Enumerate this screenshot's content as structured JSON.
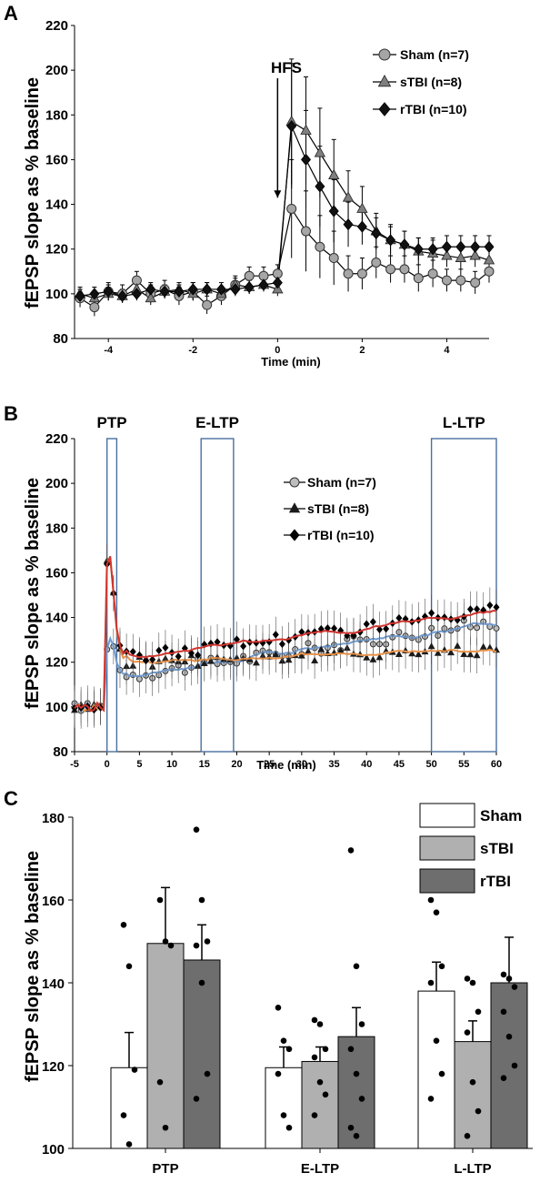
{
  "chart_data": [
    {
      "panel": "A",
      "type": "line",
      "ylabel": "fEPSP slope as % baseline",
      "xlabel": "Time (min)",
      "xlim": [
        -4.8,
        5.0
      ],
      "ylim": [
        80,
        220
      ],
      "xticks": [
        -4,
        -2,
        0,
        2,
        4
      ],
      "yticks": [
        80,
        100,
        120,
        140,
        160,
        180,
        200,
        220
      ],
      "annotation": "HFS",
      "annotation_x": 0,
      "legend_position": "top-right",
      "series": [
        {
          "name": "Sham (n=7)",
          "marker": "circle",
          "x": [
            -4.67,
            -4.33,
            -4.0,
            -3.67,
            -3.33,
            -3.0,
            -2.67,
            -2.33,
            -2.0,
            -1.67,
            -1.33,
            -1.0,
            -0.67,
            -0.33,
            0.0,
            0.33,
            0.67,
            1.0,
            1.33,
            1.67,
            2.0,
            2.33,
            2.67,
            3.0,
            3.33,
            3.67,
            4.0,
            4.33,
            4.67,
            5.0
          ],
          "y": [
            98,
            94,
            101,
            100,
            106,
            100,
            102,
            99,
            101,
            95,
            99,
            104,
            108,
            108,
            109,
            138,
            128,
            121,
            116,
            109,
            109,
            114,
            111,
            111,
            107,
            109,
            106,
            106,
            105,
            110
          ],
          "err": [
            4,
            4,
            4,
            4,
            4,
            4,
            4,
            4,
            4,
            4,
            4,
            4,
            4,
            4,
            4,
            22,
            18,
            14,
            12,
            8,
            7,
            7,
            6,
            6,
            6,
            6,
            5,
            5,
            5,
            5
          ]
        },
        {
          "name": "sTBI (n=8)",
          "marker": "triangle",
          "x": [
            -4.67,
            -4.33,
            -4.0,
            -3.67,
            -3.33,
            -3.0,
            -2.67,
            -2.33,
            -2.0,
            -1.67,
            -1.33,
            -1.0,
            -0.67,
            -0.33,
            0.0,
            0.33,
            0.67,
            1.0,
            1.33,
            1.67,
            2.0,
            2.33,
            2.67,
            3.0,
            3.33,
            3.67,
            4.0,
            4.33,
            4.67,
            5.0
          ],
          "y": [
            100,
            98,
            100,
            99,
            102,
            98,
            101,
            102,
            100,
            102,
            100,
            104,
            103,
            104,
            102,
            177,
            173,
            163,
            153,
            143,
            138,
            128,
            124,
            122,
            119,
            118,
            117,
            116,
            117,
            115
          ],
          "err": [
            3,
            3,
            3,
            3,
            3,
            3,
            3,
            3,
            3,
            3,
            3,
            3,
            3,
            3,
            3,
            28,
            24,
            20,
            16,
            12,
            10,
            8,
            7,
            6,
            6,
            6,
            5,
            5,
            5,
            5
          ]
        },
        {
          "name": "rTBI (n=10)",
          "marker": "diamond",
          "x": [
            -4.67,
            -4.33,
            -4.0,
            -3.67,
            -3.33,
            -3.0,
            -2.67,
            -2.33,
            -2.0,
            -1.67,
            -1.33,
            -1.0,
            -0.67,
            -0.33,
            0.0,
            0.33,
            0.67,
            1.0,
            1.33,
            1.67,
            2.0,
            2.33,
            2.67,
            3.0,
            3.33,
            3.67,
            4.0,
            4.33,
            4.67,
            5.0
          ],
          "y": [
            99,
            100,
            101,
            99,
            100,
            102,
            101,
            101,
            102,
            102,
            102,
            102,
            103,
            104,
            105,
            175,
            160,
            148,
            137,
            131,
            130,
            127,
            124,
            122,
            120,
            120,
            121,
            121,
            121,
            121
          ],
          "err": [
            3,
            3,
            3,
            3,
            3,
            3,
            3,
            3,
            3,
            3,
            3,
            3,
            3,
            3,
            3,
            28,
            22,
            18,
            14,
            10,
            8,
            7,
            6,
            6,
            5,
            5,
            5,
            5,
            5,
            5
          ]
        }
      ]
    },
    {
      "panel": "B",
      "type": "line",
      "ylabel": "fEPSP slope as % baseline",
      "xlabel": "Time (min)",
      "xlim": [
        -5,
        60
      ],
      "ylim": [
        80,
        220
      ],
      "xticks": [
        -5,
        0,
        5,
        10,
        15,
        20,
        25,
        30,
        35,
        40,
        45,
        50,
        55,
        60
      ],
      "yticks": [
        80,
        100,
        120,
        140,
        160,
        180,
        200,
        220
      ],
      "windows": [
        {
          "label": "PTP",
          "x0": 0,
          "x1": 1.5
        },
        {
          "label": "E-LTP",
          "x0": 14.5,
          "x1": 19.5
        },
        {
          "label": "L-LTP",
          "x0": 50,
          "x1": 60
        }
      ],
      "legend_position": "top-right",
      "series": [
        {
          "name": "Sham (n=7)",
          "marker": "circle",
          "baseline": 100,
          "peak": 138,
          "plateau_start": 114,
          "plateau_end": 138,
          "color": "#6f9bd1"
        },
        {
          "name": "sTBI (n=8)",
          "marker": "triangle",
          "baseline": 100,
          "peak": 177,
          "plateau_start": 120,
          "plateau_end": 126,
          "color": "#e8924a"
        },
        {
          "name": "rTBI (n=10)",
          "marker": "diamond",
          "baseline": 100,
          "peak": 175,
          "plateau_start": 122,
          "plateau_end": 143,
          "color": "#d0352f"
        }
      ]
    },
    {
      "panel": "C",
      "type": "bar",
      "ylabel": "fEPSP slope as % baseline",
      "ylim": [
        100,
        180
      ],
      "yticks": [
        100,
        120,
        140,
        160,
        180
      ],
      "categories": [
        "PTP",
        "E-LTP",
        "L-LTP"
      ],
      "legend_position": "top-right",
      "series": [
        {
          "name": "Sham",
          "color": "#ffffff",
          "values": [
            119.5,
            119.5,
            138.0
          ],
          "err": [
            8.5,
            5.0,
            7.0
          ],
          "points": [
            [
              154,
              144,
              119,
              108,
              101
            ],
            [
              134,
              126,
              124,
              118,
              108,
              105
            ],
            [
              160,
              157,
              144,
              140,
              126,
              118,
              112
            ]
          ]
        },
        {
          "name": "sTBI",
          "color": "#b0b0b0",
          "values": [
            149.5,
            121.0,
            125.8
          ],
          "err": [
            13.5,
            3.5,
            5.0
          ],
          "points": [
            [
              160,
              150,
              149,
              116,
              105
            ],
            [
              131,
              130,
              124,
              122,
              116,
              113,
              108
            ],
            [
              141,
              140,
              133,
              128,
              116,
              109,
              103
            ]
          ]
        },
        {
          "name": "rTBI",
          "color": "#6e6e6e",
          "values": [
            145.5,
            127.0,
            140.0
          ],
          "err": [
            8.5,
            7.0,
            11.0
          ],
          "points": [
            [
              177,
              160,
              150,
              149,
              140,
              118,
              112
            ],
            [
              172,
              144,
              130,
              124,
              118,
              112,
              105,
              103
            ],
            [
              142,
              141,
              139,
              133,
              127,
              120,
              117
            ]
          ]
        }
      ]
    }
  ],
  "panel_labels": [
    "A",
    "B",
    "C"
  ]
}
